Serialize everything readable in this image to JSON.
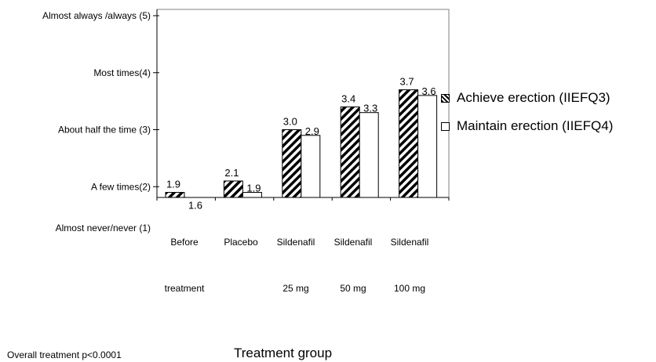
{
  "chart_data": {
    "type": "bar",
    "ylabel_ticks": [
      "Almost never/never (1)",
      "A few times(2)",
      "About half the time (3)",
      "Most times(4)",
      "Almost always /always (5)"
    ],
    "ytick_values": [
      1,
      2,
      3,
      4,
      5
    ],
    "ylim": [
      1,
      5
    ],
    "categories": [
      {
        "line1": "Before",
        "line2": "treatment"
      },
      {
        "line1": "Placebo",
        "line2": ""
      },
      {
        "line1": "Sildenafil",
        "line2": "25 mg"
      },
      {
        "line1": "Sildenafil",
        "line2": "50 mg"
      },
      {
        "line1": "Sildenafil",
        "line2": "100 mg"
      }
    ],
    "series": [
      {
        "name": "Achieve erection (IIEFQ3)",
        "values": [
          1.9,
          2.1,
          3.0,
          3.4,
          3.7
        ],
        "labels": [
          "1.9",
          "2.1",
          "3.0",
          "3.4",
          "3.7"
        ],
        "pattern": "hatched"
      },
      {
        "name": "Maintain erection (IIEFQ4)",
        "values": [
          1.6,
          1.9,
          2.9,
          3.3,
          3.6
        ],
        "labels": [
          "1.6",
          "1.9",
          "2.9",
          "3.3",
          "3.6"
        ],
        "pattern": "plain"
      }
    ],
    "xlabel": "Treatment group",
    "annotation": "Overall treatment p<0.0001",
    "grid": false,
    "legend_position": "right"
  }
}
